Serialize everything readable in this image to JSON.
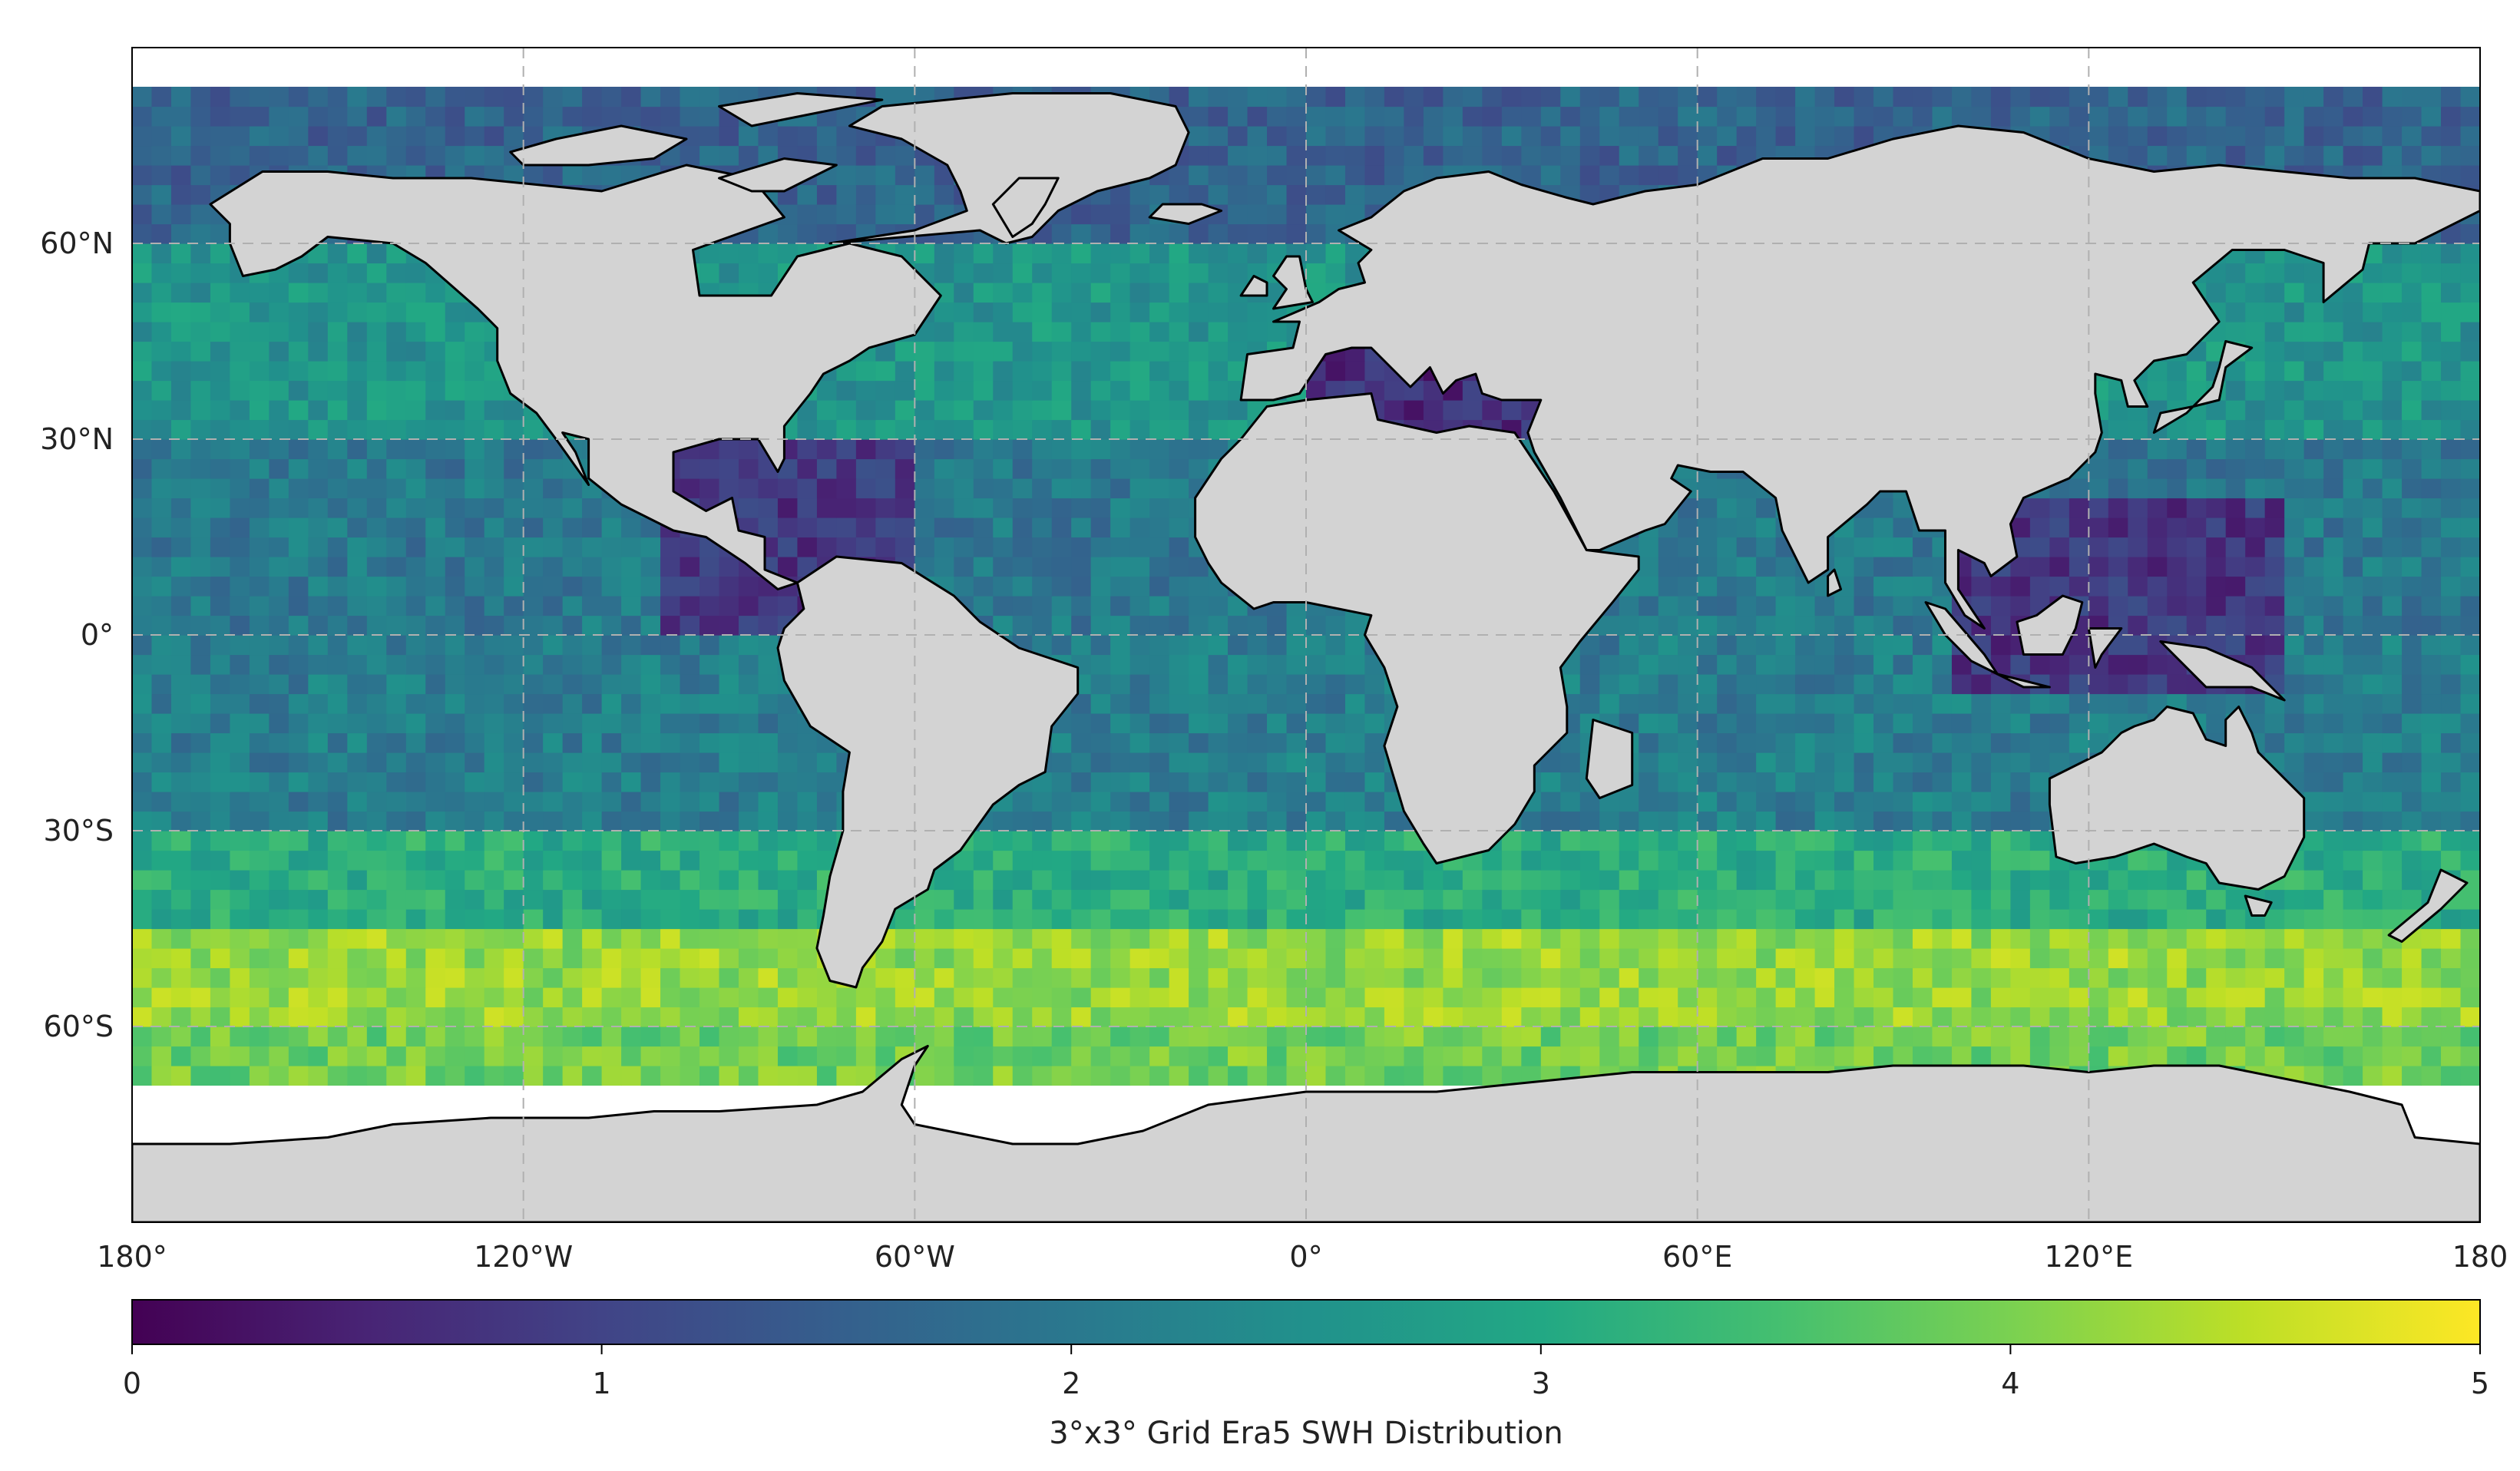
{
  "chart_data": {
    "type": "heatmap",
    "projection": "PlateCarree",
    "grid_resolution_deg": 3,
    "lon_range": [
      -180,
      180
    ],
    "lat_range": [
      -90,
      90
    ],
    "lon_ticks": [
      {
        "value": -180,
        "label": "180°"
      },
      {
        "value": -120,
        "label": "120°W"
      },
      {
        "value": -60,
        "label": "60°W"
      },
      {
        "value": 0,
        "label": "0°"
      },
      {
        "value": 60,
        "label": "60°E"
      },
      {
        "value": 120,
        "label": "120°E"
      },
      {
        "value": 180,
        "label": "180"
      }
    ],
    "lat_ticks": [
      {
        "value": 60,
        "label": "60°N"
      },
      {
        "value": 30,
        "label": "30°N"
      },
      {
        "value": 0,
        "label": "0°"
      },
      {
        "value": -30,
        "label": "30°S"
      },
      {
        "value": -60,
        "label": "60°S"
      }
    ],
    "gridlines": true,
    "data_lat_range": [
      -69,
      84
    ],
    "colorbar": {
      "cmap": "viridis",
      "range": [
        0,
        5
      ],
      "ticks": [
        "0",
        "1",
        "2",
        "3",
        "4",
        "5"
      ],
      "label": "3°x3° Grid Era5 SWH Distribution",
      "orientation": "horizontal",
      "placement": "bottom"
    },
    "swh_by_latitude_band": [
      {
        "lat": [
          60,
          84
        ],
        "swh": 1.6
      },
      {
        "lat": [
          30,
          60
        ],
        "swh": 2.6
      },
      {
        "lat": [
          0,
          30
        ],
        "swh": 2.0
      },
      {
        "lat": [
          -30,
          0
        ],
        "swh": 2.1
      },
      {
        "lat": [
          -45,
          -30
        ],
        "swh": 3.1
      },
      {
        "lat": [
          -60,
          -45
        ],
        "swh": 4.2
      },
      {
        "lat": [
          -69,
          -60
        ],
        "swh": 3.9
      }
    ],
    "low_swh_seas": [
      {
        "lat": [
          0,
          30
        ],
        "lon": [
          -100,
          -60
        ],
        "swh": 0.8
      },
      {
        "lat": [
          30,
          45
        ],
        "lon": [
          0,
          40
        ],
        "swh": 0.6
      },
      {
        "lat": [
          -10,
          20
        ],
        "lon": [
          100,
          150
        ],
        "swh": 0.8
      }
    ],
    "colors": {
      "land": "#d3d3d3",
      "coastline": "#000000",
      "gridline": "#b0b0b0",
      "frame": "#000000"
    }
  }
}
